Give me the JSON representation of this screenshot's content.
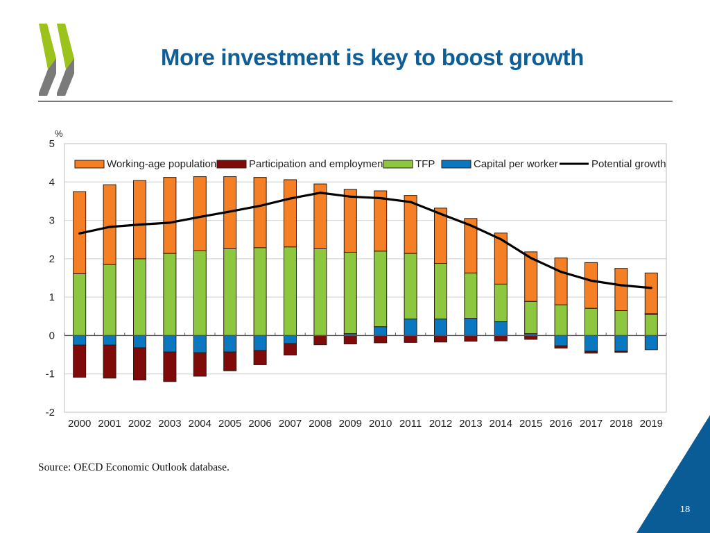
{
  "slide": {
    "title": "More investment is key to boost growth",
    "source": "Source: OECD Economic Outlook database.",
    "page_number": "18",
    "colors": {
      "title": "#0E5F97",
      "corner": "#0A5C96",
      "logo_green": "#9BC31C",
      "logo_gray": "#7A7A7A"
    }
  },
  "chart_data": {
    "type": "bar",
    "stacked": true,
    "title": "",
    "xlabel": "",
    "ylabel": "%",
    "ylim": [
      -2,
      5
    ],
    "yticks": [
      5,
      4,
      3,
      2,
      1,
      0,
      -1,
      -2
    ],
    "ytick_labels": [
      "5",
      "4",
      "3",
      "2",
      "1",
      "0",
      "-1",
      "-2"
    ],
    "grid": true,
    "legend_position": "top",
    "categories": [
      "2000",
      "2001",
      "2002",
      "2003",
      "2004",
      "2005",
      "2006",
      "2007",
      "2008",
      "2009",
      "2010",
      "2011",
      "2012",
      "2013",
      "2014",
      "2015",
      "2016",
      "2017",
      "2018",
      "2019"
    ],
    "series": [
      {
        "name": "Working-age population",
        "kind": "bar",
        "color": "#F47F24",
        "values": [
          2.14,
          2.08,
          2.04,
          1.98,
          1.93,
          1.88,
          1.83,
          1.75,
          1.69,
          1.64,
          1.57,
          1.51,
          1.44,
          1.42,
          1.33,
          1.29,
          1.22,
          1.19,
          1.1,
          1.06
        ]
      },
      {
        "name": "Participation and employment",
        "kind": "bar",
        "color": "#7F0A0A",
        "values": [
          -0.84,
          -0.86,
          -0.84,
          -0.77,
          -0.61,
          -0.49,
          -0.37,
          -0.3,
          -0.24,
          -0.22,
          -0.19,
          -0.18,
          -0.17,
          -0.15,
          -0.14,
          -0.1,
          -0.06,
          -0.05,
          -0.03,
          0.02
        ]
      },
      {
        "name": "TFP",
        "kind": "bar",
        "color": "#8DC63F",
        "values": [
          1.61,
          1.85,
          2.0,
          2.14,
          2.21,
          2.26,
          2.29,
          2.31,
          2.26,
          2.12,
          1.97,
          1.71,
          1.45,
          1.18,
          0.98,
          0.84,
          0.8,
          0.71,
          0.65,
          0.55
        ]
      },
      {
        "name": "Capital per worker",
        "kind": "bar",
        "color": "#0A78C0",
        "values": [
          -0.25,
          -0.25,
          -0.32,
          -0.43,
          -0.45,
          -0.43,
          -0.39,
          -0.21,
          0.0,
          0.05,
          0.23,
          0.43,
          0.43,
          0.45,
          0.36,
          0.05,
          -0.27,
          -0.41,
          -0.41,
          -0.37
        ]
      },
      {
        "name": "Potential growth",
        "kind": "line",
        "color": "#000000",
        "values": [
          2.66,
          2.83,
          2.89,
          2.94,
          3.09,
          3.23,
          3.38,
          3.57,
          3.72,
          3.62,
          3.58,
          3.48,
          3.17,
          2.87,
          2.51,
          2.02,
          1.66,
          1.43,
          1.31,
          1.24
        ]
      }
    ]
  }
}
